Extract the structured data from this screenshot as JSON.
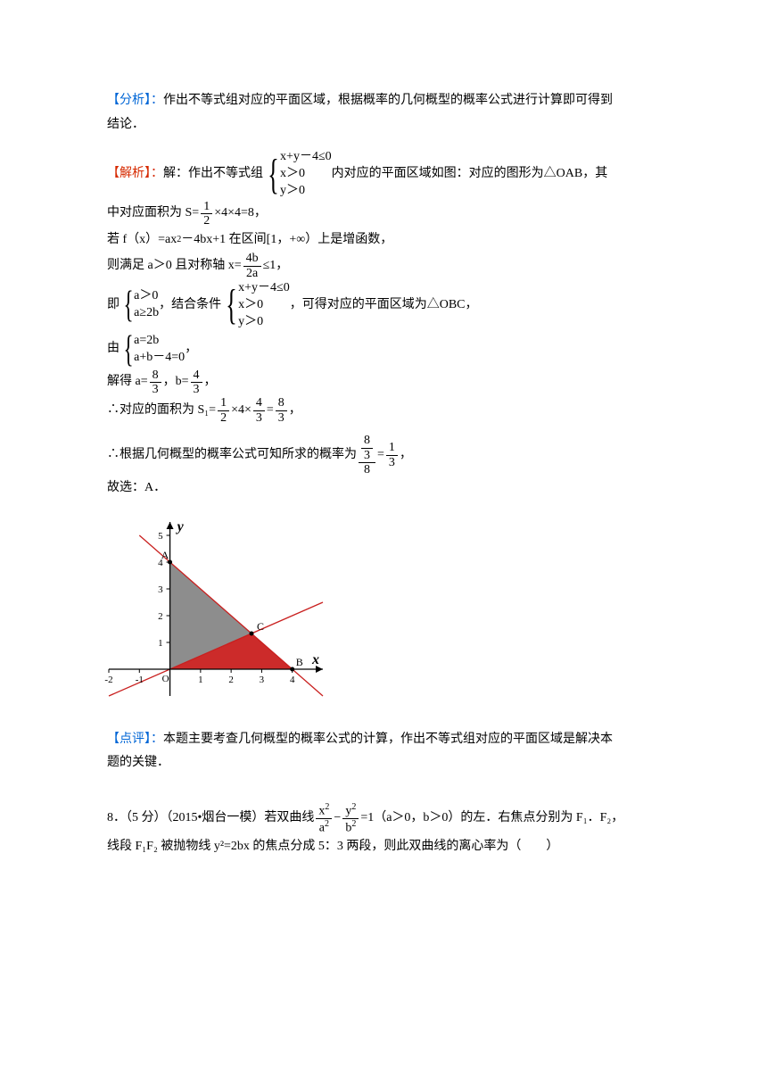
{
  "labels": {
    "analysis": "【分析】：",
    "solution": "【解析】：",
    "review": "【点评】："
  },
  "analysis_text_a": " 作出不等式组对应的平面区域，根据概率的几何概型的概率公式进行计算即可得到",
  "analysis_text_b": "结论．",
  "solution_prefix": " 解：作出不等式组",
  "ineq1": {
    "r1": "x+y－4≤0",
    "r2": "x＞0",
    "r3": "y＞0"
  },
  "solution_tail1": " 内对应的平面区域如图：对应的图形为△OAB，其",
  "line_area": "中对应面积为 S=",
  "frac_half": {
    "num": "1",
    "den": "2"
  },
  "area_tail": "×4×4=8，",
  "line_f": "若 f（x）=ax",
  "line_f2": "－4bx+1 在区间[1，+∞）上是增函数，",
  "line_axis_a": "则满足 a＞0 且对称轴 x=",
  "frac_axis": {
    "num": "4b",
    "den": "2a"
  },
  "line_axis_b": "≤1，",
  "ji": "即",
  "cond2": {
    "r1": "a＞0",
    "r2": "a≥2b"
  },
  "combine": "，结合条件",
  "cond_tail": "，可得对应的平面区域为△OBC，",
  "you": "由",
  "sys": {
    "r1": "a=2b",
    "r2": "a+b－4=0"
  },
  "comma": "，",
  "solve_a": "解得 a=",
  "frac_83": {
    "num": "8",
    "den": "3"
  },
  "solve_b": "，b=",
  "frac_43": {
    "num": "4",
    "den": "3"
  },
  "area_s1_a": "∴对应的面积为 S₁=",
  "times4": "×4×",
  "eq": "=",
  "prob_a": "∴根据几何概型的概率公式可知所求的概率为",
  "frac_big": {
    "num_top": "8",
    "num_bot": "3",
    "den": "8"
  },
  "frac_13": {
    "num": "1",
    "den": "3"
  },
  "answer": "故选：A．",
  "review_text_a": " 本题主要考查几何概型的概率公式的计算，作出不等式组对应的平面区域是解决本",
  "review_text_b": "题的关键．",
  "q8_a": "8．（5 分）（2015•烟台一模）若双曲线",
  "q8_frac1": {
    "num": "x",
    "den": "a"
  },
  "q8_minus": " − ",
  "q8_frac2": {
    "num": "y",
    "den": "b"
  },
  "q8_b": "=1（a＞0，b＞0）的左．右焦点分别为 F₁．F₂，",
  "q8_c": "线段 F₁F₂ 被抛物线 y²=2bx 的焦点分成 5：3 两段，则此双曲线的离心率为（　　）",
  "chart": {
    "type": "region-plot",
    "background_color": "#ffffff",
    "axis_color": "#000000",
    "line_color": "#c9201f",
    "region_oab_color": "#7d7d7d",
    "region_obc_color": "#c9201f",
    "xlim": [
      -2,
      5
    ],
    "ylim": [
      -1,
      5.5
    ],
    "xticks": [
      -2,
      -1,
      1,
      2,
      3,
      4
    ],
    "yticks": [
      1,
      2,
      3,
      4,
      5
    ],
    "tick_fontsize": 11,
    "axis_labels": {
      "x": "x",
      "y": "y"
    },
    "axis_label_style": "italic-bold",
    "origin_label": "O",
    "points": {
      "A": {
        "x": 0,
        "y": 4,
        "label": "A"
      },
      "B": {
        "x": 4,
        "y": 0,
        "label": "B"
      },
      "C": {
        "x": 2.667,
        "y": 1.333,
        "label": "C"
      }
    },
    "lines": [
      {
        "desc": "x+y=4",
        "x1": -1,
        "y1": 5,
        "x2": 5,
        "y2": -1
      },
      {
        "desc": "a=2b → y=x/2",
        "x1": -2,
        "y1": -1,
        "x2": 5,
        "y2": 2.5
      }
    ]
  }
}
